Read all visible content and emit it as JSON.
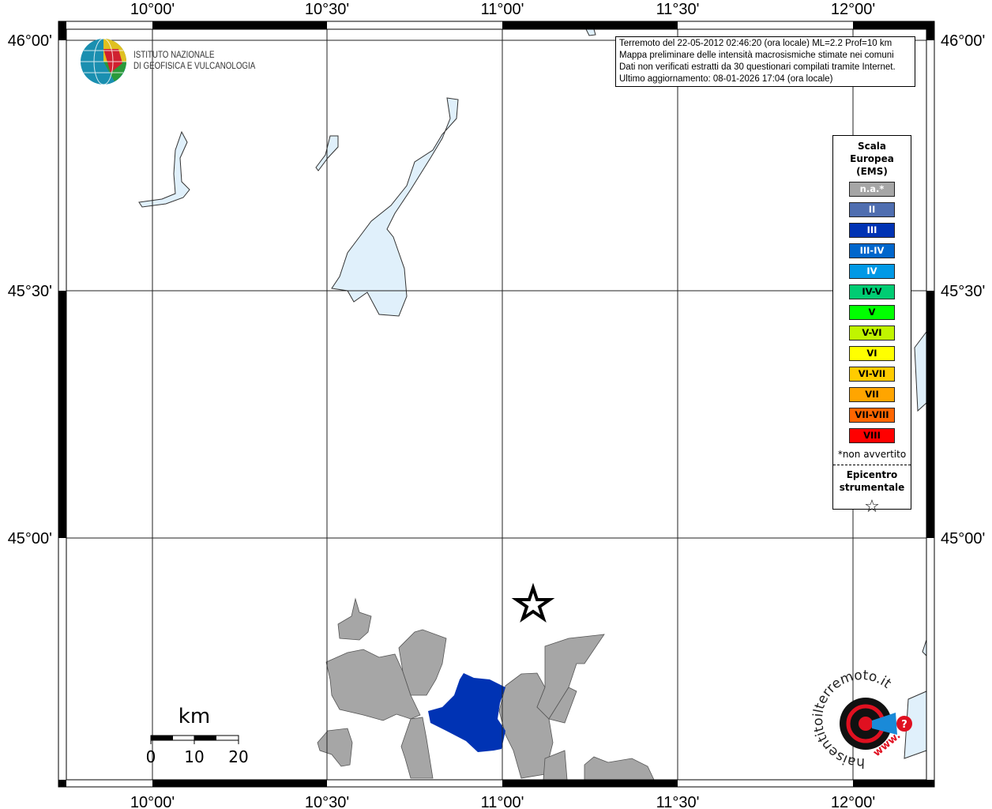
{
  "map": {
    "longitude_labels": [
      "10°00'",
      "10°30'",
      "11°00'",
      "11°30'",
      "12°00'"
    ],
    "latitude_labels": [
      "46°00'",
      "45°30'",
      "45°00'"
    ],
    "colors": {
      "water": "#e0f0fb",
      "not_felt": "#a6a6a6",
      "intensity_III": "#0033b4"
    }
  },
  "info_box": {
    "lines": [
      "Terremoto del 22-05-2012 02:46:20 (ora locale) ML=2.2 Prof=10 km",
      "Mappa preliminare delle intensità macrosismiche stimate nei comuni",
      "Dati non verificati estratti da 30 questionari compilati tramite Internet.",
      "Ultimo aggiornamento: 08-01-2026 17:04 (ora locale)"
    ]
  },
  "ingv_logo": {
    "line1": "ISTITUTO NAZIONALE",
    "line2": "DI GEOFISICA E VULCANOLOGIA"
  },
  "legend": {
    "title_lines": [
      "Scala",
      "Europea",
      "(EMS)"
    ],
    "items": [
      {
        "label": "n.a.*",
        "color": "#a6a6a6",
        "text_color": "#ffffff"
      },
      {
        "label": "II",
        "color": "#4f6eb0",
        "text_color": "#ffffff"
      },
      {
        "label": "III",
        "color": "#0033b4",
        "text_color": "#ffffff"
      },
      {
        "label": "III-IV",
        "color": "#0066cc",
        "text_color": "#ffffff"
      },
      {
        "label": "IV",
        "color": "#0099e6",
        "text_color": "#ffffff"
      },
      {
        "label": "IV-V",
        "color": "#00cc73",
        "text_color": "#000000"
      },
      {
        "label": "V",
        "color": "#00ff00",
        "text_color": "#000000"
      },
      {
        "label": "V-VI",
        "color": "#c0f500",
        "text_color": "#000000"
      },
      {
        "label": "VI",
        "color": "#ffff00",
        "text_color": "#000000"
      },
      {
        "label": "VI-VII",
        "color": "#ffcc00",
        "text_color": "#000000"
      },
      {
        "label": "VII",
        "color": "#ffa500",
        "text_color": "#000000"
      },
      {
        "label": "VII-VIII",
        "color": "#ff6600",
        "text_color": "#000000"
      },
      {
        "label": "VIII",
        "color": "#ff0000",
        "text_color": "#000000"
      }
    ],
    "note": "*non avvertito",
    "epicenter_lines": [
      "Epicentro",
      "strumentale"
    ],
    "epicenter_icon": "star-outline-icon"
  },
  "scale_bar": {
    "unit": "km",
    "labels": [
      "0",
      "10",
      "20"
    ]
  },
  "hsit_logo": {
    "text": "haisentitoilterremoto.it",
    "prefix": "www."
  }
}
